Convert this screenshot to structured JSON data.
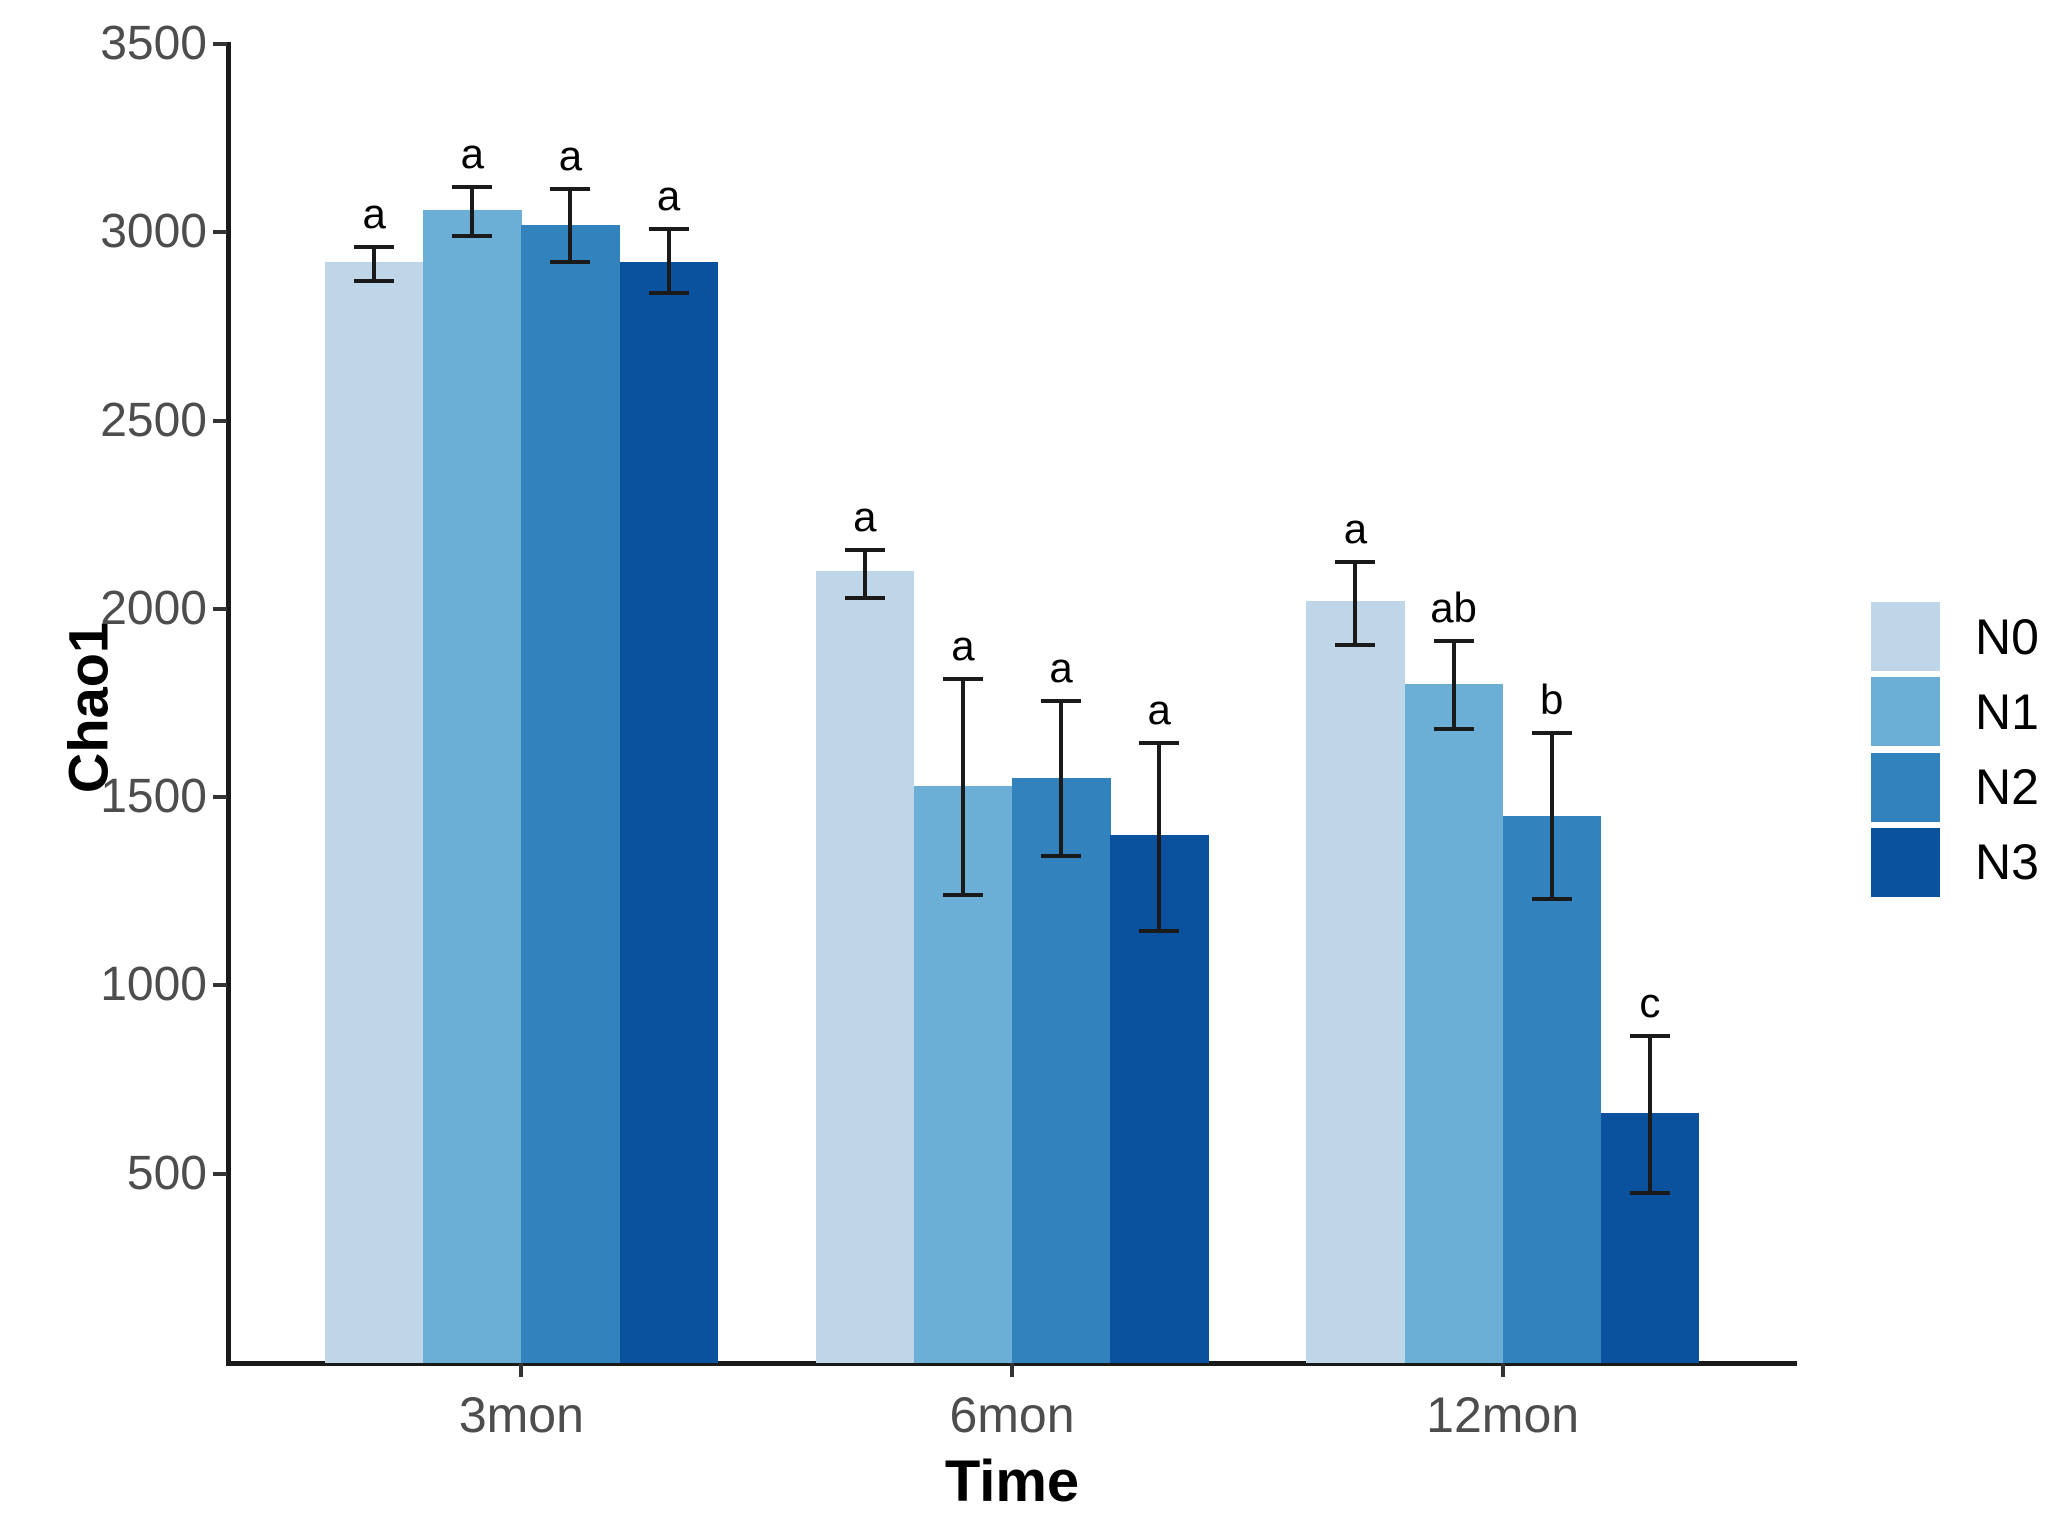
{
  "chart_data": {
    "type": "bar",
    "title": "",
    "xlabel": "Time",
    "ylabel": "Chao1",
    "categories": [
      "3mon",
      "6mon",
      "12mon"
    ],
    "series": [
      {
        "name": "N0",
        "color": "#BED6E8",
        "values": [
          2920,
          2100,
          2020
        ],
        "err_low": [
          2870,
          2030,
          1905
        ],
        "err_high": [
          2960,
          2155,
          2125
        ],
        "letters": [
          "a",
          "a",
          "a"
        ]
      },
      {
        "name": "N1",
        "color": "#6BAED6",
        "values": [
          3060,
          1530,
          1800
        ],
        "err_low": [
          2990,
          1240,
          1680
        ],
        "err_high": [
          3120,
          1815,
          1915
        ],
        "letters": [
          "a",
          "a",
          "ab"
        ]
      },
      {
        "name": "N2",
        "color": "#3182BD",
        "values": [
          3020,
          1550,
          1450
        ],
        "err_low": [
          2920,
          1345,
          1230
        ],
        "err_high": [
          3115,
          1755,
          1670
        ],
        "letters": [
          "a",
          "a",
          "b"
        ]
      },
      {
        "name": "N3",
        "color": "#0A529E",
        "values": [
          2920,
          1400,
          660
        ],
        "err_low": [
          2840,
          1145,
          450
        ],
        "err_high": [
          3010,
          1645,
          865
        ],
        "letters": [
          "a",
          "a",
          "c"
        ]
      }
    ],
    "y_ticks": [
      500,
      1000,
      1500,
      2000,
      2500,
      3000,
      3500
    ],
    "ylim": [
      0,
      3500
    ],
    "grid": false,
    "legend_position": "right",
    "legend_labels": [
      "N0",
      "N1",
      "N2",
      "N3"
    ]
  },
  "axes": {
    "x_title": "Time",
    "y_title": "Chao1"
  },
  "colors": {
    "background": "#ffffff",
    "axis_line": "#1a1a1a",
    "tick_label": "#4d4d4d",
    "error_bar": "#1a1a1a",
    "sig_letter": "#000000"
  }
}
